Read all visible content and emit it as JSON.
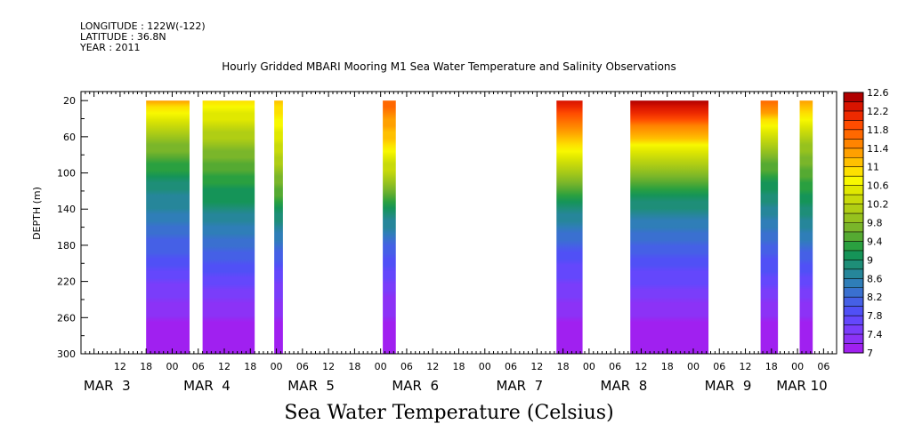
{
  "header": {
    "longitude": "LONGITUDE : 122W(-122)",
    "latitude": "LATITUDE : 36.8N",
    "year": "YEAR : 2011"
  },
  "chart_data": {
    "type": "heatmap",
    "title": "Hourly Gridded MBARI Mooring M1 Sea Water Temperature and Salinity Observations",
    "variable_title": "Sea Water Temperature (Celsius)",
    "ylabel": "DEPTH (m)",
    "ylim": [
      300,
      10
    ],
    "y_ticks": [
      20,
      60,
      100,
      140,
      180,
      220,
      260,
      300
    ],
    "x_time_range_hours": [
      0,
      174
    ],
    "x_hour_ticks": [
      {
        "h": 9,
        "label": "12"
      },
      {
        "h": 15,
        "label": "18"
      },
      {
        "h": 21,
        "label": "00"
      },
      {
        "h": 27,
        "label": "06"
      },
      {
        "h": 33,
        "label": "12"
      },
      {
        "h": 39,
        "label": "18"
      },
      {
        "h": 45,
        "label": "00"
      },
      {
        "h": 51,
        "label": "06"
      },
      {
        "h": 57,
        "label": "12"
      },
      {
        "h": 63,
        "label": "18"
      },
      {
        "h": 69,
        "label": "00"
      },
      {
        "h": 75,
        "label": "06"
      },
      {
        "h": 81,
        "label": "12"
      },
      {
        "h": 87,
        "label": "18"
      },
      {
        "h": 93,
        "label": "00"
      },
      {
        "h": 99,
        "label": "06"
      },
      {
        "h": 105,
        "label": "12"
      },
      {
        "h": 111,
        "label": "18"
      },
      {
        "h": 117,
        "label": "00"
      },
      {
        "h": 123,
        "label": "06"
      },
      {
        "h": 129,
        "label": "12"
      },
      {
        "h": 135,
        "label": "18"
      },
      {
        "h": 141,
        "label": "00"
      },
      {
        "h": 147,
        "label": "06"
      },
      {
        "h": 153,
        "label": "12"
      },
      {
        "h": 159,
        "label": "18"
      },
      {
        "h": 165,
        "label": "00"
      },
      {
        "h": 171,
        "label": "06"
      }
    ],
    "x_day_labels": [
      {
        "h": 6,
        "label": "MAR  3"
      },
      {
        "h": 29,
        "label": "MAR  4"
      },
      {
        "h": 53,
        "label": "MAR  5"
      },
      {
        "h": 77,
        "label": "MAR  6"
      },
      {
        "h": 101,
        "label": "MAR  7"
      },
      {
        "h": 125,
        "label": "MAR  8"
      },
      {
        "h": 149,
        "label": "MAR  9"
      },
      {
        "h": 166,
        "label": "MAR 10"
      }
    ],
    "data_segments": [
      {
        "start_h": 15,
        "end_h": 25,
        "surface_temp": 11.2
      },
      {
        "start_h": 28,
        "end_h": 40,
        "surface_temp": 11.4
      },
      {
        "start_h": 44.5,
        "end_h": 46.5,
        "surface_temp": 11.6
      },
      {
        "start_h": 69.5,
        "end_h": 72.5,
        "surface_temp": 11.8
      },
      {
        "start_h": 109.5,
        "end_h": 115.5,
        "surface_temp": 11.8
      },
      {
        "start_h": 126.5,
        "end_h": 144.5,
        "surface_temp": 12.0
      },
      {
        "start_h": 156.5,
        "end_h": 160.5,
        "surface_temp": 11.6
      },
      {
        "start_h": 165.5,
        "end_h": 168.5,
        "surface_temp": 11.6
      }
    ],
    "colorbar": {
      "levels": [
        7,
        7.2,
        7.4,
        7.6,
        7.8,
        8,
        8.2,
        8.4,
        8.6,
        8.8,
        9,
        9.2,
        9.4,
        9.6,
        9.8,
        10,
        10.2,
        10.4,
        10.6,
        10.8,
        11,
        11.2,
        11.4,
        11.6,
        11.8,
        12,
        12.2,
        12.4,
        12.6
      ],
      "labels": [
        "7",
        "7.4",
        "7.8",
        "8.2",
        "8.6",
        "9",
        "9.4",
        "9.8",
        "10.2",
        "10.6",
        "11",
        "11.4",
        "11.8",
        "12.2",
        "12.6"
      ],
      "colors": [
        "#a020f0",
        "#8c32f6",
        "#7a3dfa",
        "#6447fc",
        "#5050f6",
        "#4560e6",
        "#3a70d0",
        "#2f7eb8",
        "#26869a",
        "#1e8e78",
        "#159458",
        "#2aa040",
        "#55aa32",
        "#7ab62a",
        "#96c21e",
        "#b0ce14",
        "#c8da0a",
        "#e0e800",
        "#f8f800",
        "#fde000",
        "#ffc000",
        "#ffa000",
        "#ff8400",
        "#ff6800",
        "#ff4c00",
        "#ee2a00",
        "#d81400",
        "#b00000"
      ]
    }
  }
}
